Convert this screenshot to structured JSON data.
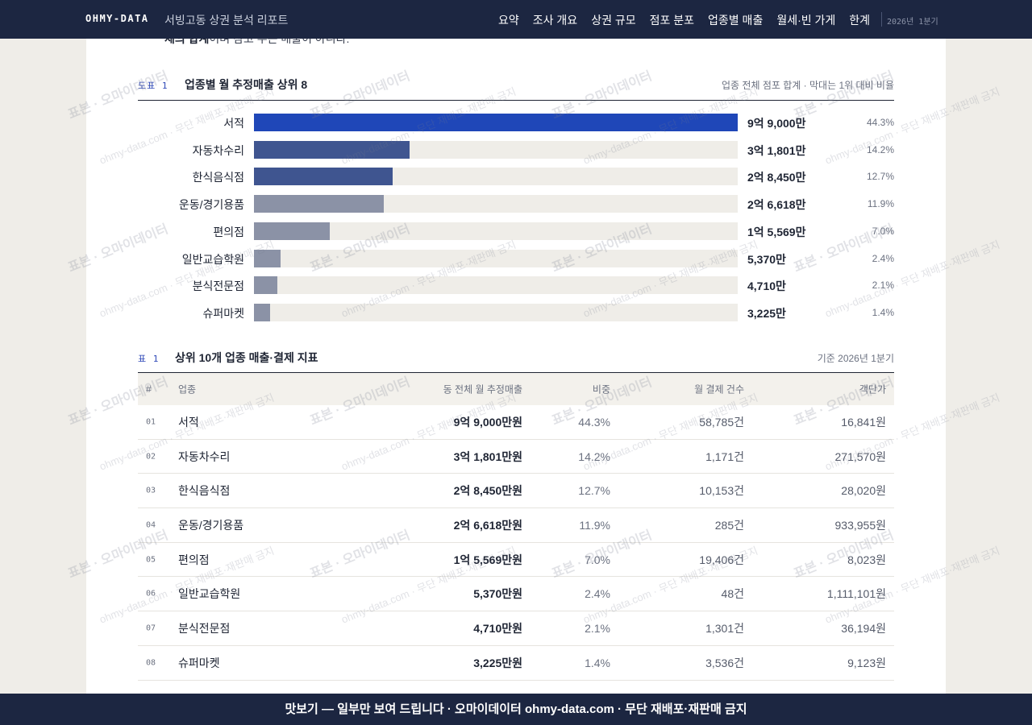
{
  "header": {
    "brand": "OHMY-DATA",
    "title": "서빙고동 상권 분석 리포트",
    "nav": [
      "요약",
      "조사 개요",
      "상권 규모",
      "점포 분포",
      "업종별 매출",
      "월세·빈 가게",
      "한계"
    ],
    "period": "2026년 1분기"
  },
  "intro_fragment": {
    "bold": "체의 합계",
    "rest": "이며 참고 수는 매출이 아니다."
  },
  "figure": {
    "label": "도표 1",
    "title": "업종별 월 추정매출 상위 8",
    "note": "업종 전체 점포 합계 · 막대는 1위 대비 비율"
  },
  "chart_data": {
    "type": "bar",
    "orientation": "horizontal",
    "title": "업종별 월 추정매출 상위 8",
    "categories": [
      "서적",
      "자동차수리",
      "한식음식점",
      "운동/경기용품",
      "편의점",
      "일반교습학원",
      "분식전문점",
      "슈퍼마켓"
    ],
    "values": [
      99000,
      31801,
      28450,
      26618,
      15569,
      5370,
      4710,
      3225
    ],
    "value_unit": "만원",
    "value_labels": [
      "9억 9,000만",
      "3억 1,801만",
      "2억 8,450만",
      "2억 6,618만",
      "1억 5,569만",
      "5,370만",
      "4,710만",
      "3,225만"
    ],
    "share_labels": [
      "44.3%",
      "14.2%",
      "12.7%",
      "11.9%",
      "7.0%",
      "2.4%",
      "2.1%",
      "1.4%"
    ],
    "bar_colors": [
      "#1f47b8",
      "#3f5590",
      "#3f5590",
      "#8b92a6",
      "#8b92a6",
      "#8b92a6",
      "#8b92a6",
      "#8b92a6"
    ],
    "track_color": "#efede8"
  },
  "table": {
    "label": "표 1",
    "title": "상위 10개 업종 매출·결제 지표",
    "note": "기준 2026년 1분기",
    "headers": [
      "#",
      "업종",
      "동 전체 월 추정매출",
      "비중",
      "월 결제 건수",
      "객단가"
    ],
    "rows": [
      [
        "01",
        "서적",
        "9억 9,000만원",
        "44.3%",
        "58,785건",
        "16,841원"
      ],
      [
        "02",
        "자동차수리",
        "3억 1,801만원",
        "14.2%",
        "1,171건",
        "271,570원"
      ],
      [
        "03",
        "한식음식점",
        "2억 8,450만원",
        "12.7%",
        "10,153건",
        "28,020원"
      ],
      [
        "04",
        "운동/경기용품",
        "2억 6,618만원",
        "11.9%",
        "285건",
        "933,955원"
      ],
      [
        "05",
        "편의점",
        "1억 5,569만원",
        "7.0%",
        "19,406건",
        "8,023원"
      ],
      [
        "06",
        "일반교습학원",
        "5,370만원",
        "2.4%",
        "48건",
        "1,111,101원"
      ],
      [
        "07",
        "분식전문점",
        "4,710만원",
        "2.1%",
        "1,301건",
        "36,194원"
      ],
      [
        "08",
        "슈퍼마켓",
        "3,225만원",
        "1.4%",
        "3,536건",
        "9,123원"
      ]
    ]
  },
  "watermark": {
    "main": "표본 · 오마이데이터",
    "sub": "ohmy-data.com · 무단 재배포·재판매 금지"
  },
  "footer": {
    "text": "맛보기 — 일부만 보여 드립니다 · 오마이데이터 ohmy-data.com · 무단 재배포·재판매 금지"
  },
  "colors": {
    "navy": "#1c2641",
    "accent": "#1f47b8"
  }
}
